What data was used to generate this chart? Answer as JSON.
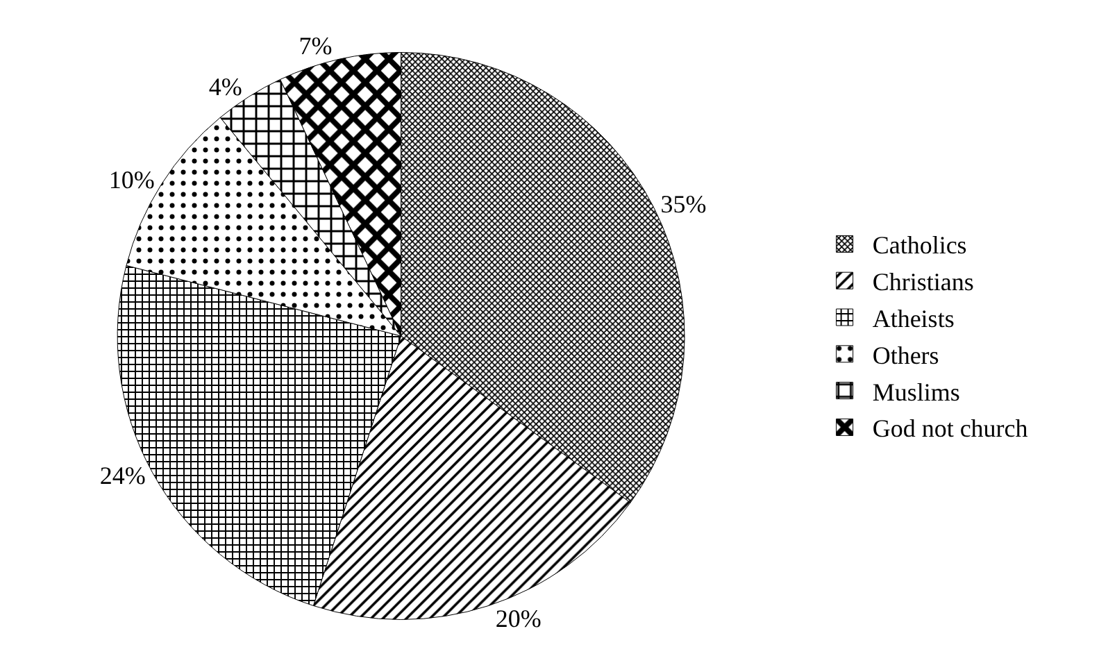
{
  "chart_data": {
    "type": "pie",
    "categories": [
      "Catholics",
      "Christians",
      "Atheists",
      "Others",
      "Muslims",
      "God not church"
    ],
    "values": [
      35,
      20,
      24,
      10,
      4,
      7
    ],
    "colors": [
      "#000000",
      "#000000",
      "#000000",
      "#000000",
      "#000000",
      "#000000"
    ],
    "value_labels": [
      "35%",
      "20%",
      "24%",
      "10%",
      "4%",
      "7%"
    ],
    "legend": "right"
  }
}
